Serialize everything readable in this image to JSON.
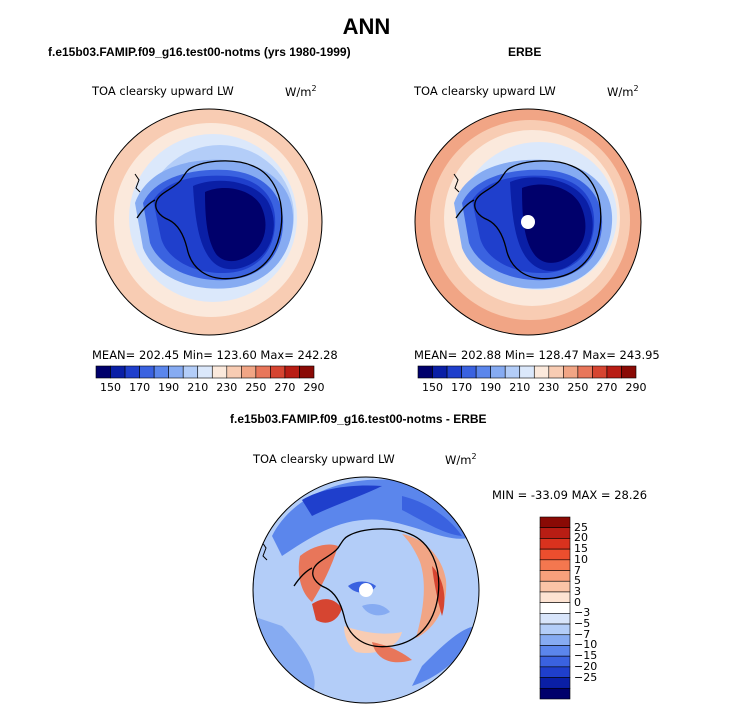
{
  "title": "ANN",
  "panels": [
    {
      "case_name": "f.e15b03.FAMIP.f09_g16.test00-notms (yrs 1980-1999)",
      "variable": "TOA clearsky upward LW",
      "units": "W/m",
      "units_exp": "2",
      "stats": "MEAN= 202.45   Min= 123.60   Max= 242.28"
    },
    {
      "case_name": "ERBE",
      "variable": "TOA clearsky upward LW",
      "units": "W/m",
      "units_exp": "2",
      "stats": "MEAN= 202.88   Min= 128.47   Max= 243.95"
    }
  ],
  "colorbar": {
    "labels": [
      "150",
      "170",
      "190",
      "210",
      "230",
      "250",
      "270",
      "290"
    ],
    "colors": [
      "#00006b",
      "#0a1fa6",
      "#1f3fcc",
      "#3a62e0",
      "#5b86ec",
      "#86abf2",
      "#b3cdf8",
      "#dbe8fb",
      "#fbe9dc",
      "#f8ccb3",
      "#f1a585",
      "#e8765a",
      "#d64531",
      "#b81d14",
      "#8a0a05"
    ]
  },
  "diff_panel": {
    "case_name": "f.e15b03.FAMIP.f09_g16.test00-notms - ERBE",
    "variable": "TOA clearsky upward LW",
    "units": "W/m",
    "units_exp": "2",
    "stats": "MIN = -33.09  MAX =   28.26"
  },
  "diff_colorbar": {
    "labels": [
      "25",
      "20",
      "15",
      "10",
      "7",
      "5",
      "3",
      "0",
      "-3",
      "-5",
      "-7",
      "-10",
      "-15",
      "-20",
      "-25"
    ],
    "colors": [
      "#8a0a05",
      "#b81d14",
      "#d9321e",
      "#ec4e2e",
      "#f4774f",
      "#f8a07c",
      "#fbc4a6",
      "#fde3d2",
      "#ffffff",
      "#d8e5fb",
      "#b3cdf8",
      "#86abf2",
      "#5b86ec",
      "#3a62e0",
      "#1f3fcc",
      "#0a1fa6",
      "#00006b"
    ]
  }
}
